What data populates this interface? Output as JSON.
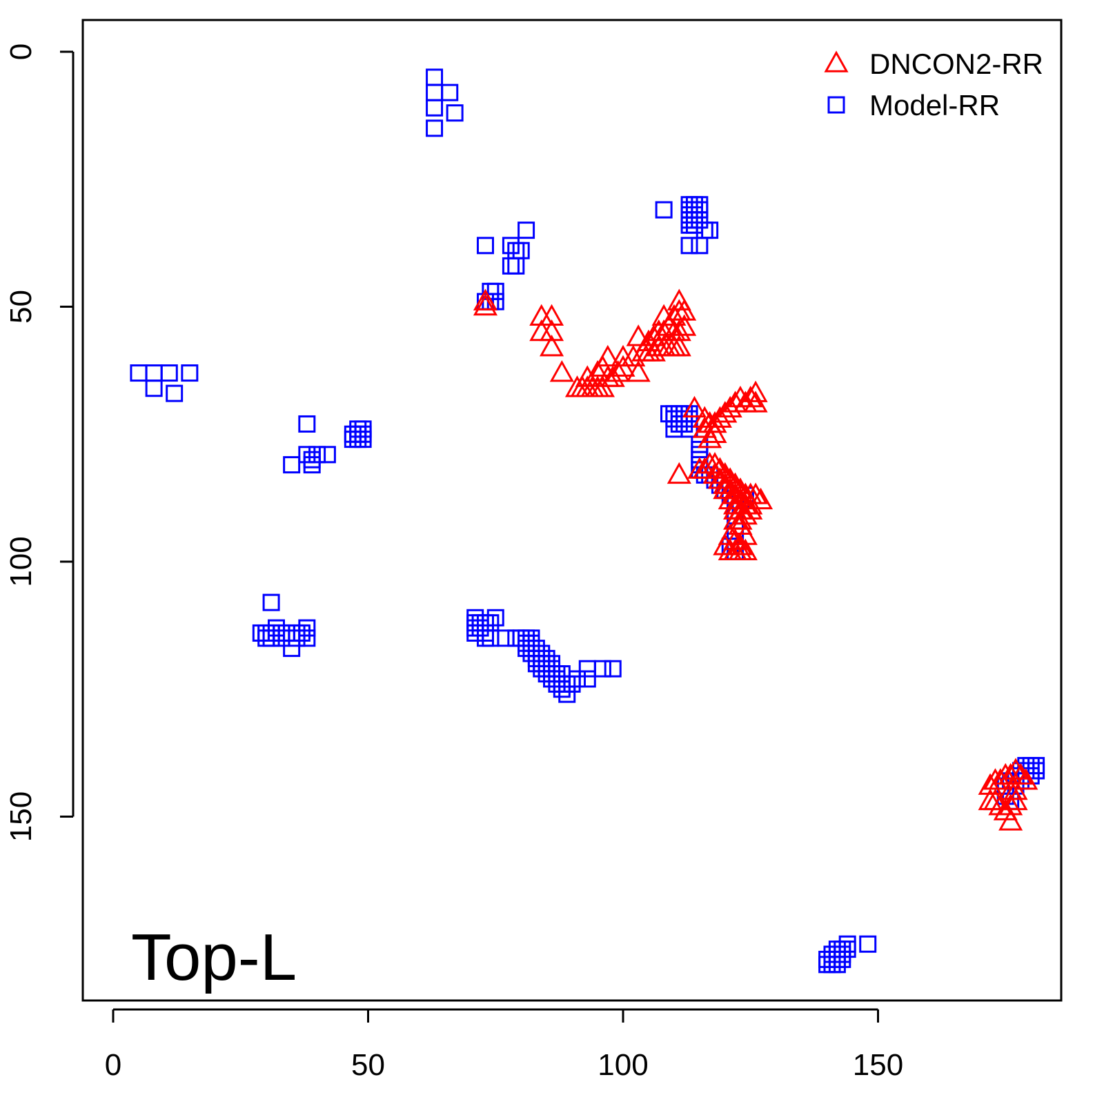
{
  "chart_data": {
    "type": "scatter",
    "title": "",
    "xlabel": "",
    "ylabel": "",
    "xlim": [
      -6,
      186
    ],
    "ylim": [
      186,
      -6
    ],
    "y_reversed": true,
    "x_ticks": [
      "0",
      "50",
      "100",
      "150"
    ],
    "x_tick_values": [
      0,
      50,
      100,
      150
    ],
    "y_ticks": [
      "0",
      "50",
      "100",
      "150"
    ],
    "y_tick_values": [
      0,
      50,
      100,
      150
    ],
    "annotation": "Top-L",
    "legend_position": "top-right",
    "grid": false,
    "series": [
      {
        "name": "DNCON2-RR",
        "marker": "triangle",
        "color": "#ff0000",
        "points": [
          [
            73,
            49
          ],
          [
            73,
            50
          ],
          [
            84,
            52
          ],
          [
            86,
            52
          ],
          [
            84,
            55
          ],
          [
            86,
            55
          ],
          [
            86,
            58
          ],
          [
            88,
            63
          ],
          [
            91,
            66
          ],
          [
            92,
            66
          ],
          [
            93,
            66
          ],
          [
            94,
            66
          ],
          [
            95,
            66
          ],
          [
            96,
            66
          ],
          [
            97,
            64
          ],
          [
            98,
            64
          ],
          [
            93,
            64
          ],
          [
            95,
            63
          ],
          [
            96,
            62
          ],
          [
            99,
            63
          ],
          [
            100,
            62
          ],
          [
            103,
            63
          ],
          [
            97,
            60
          ],
          [
            100,
            60
          ],
          [
            102,
            60
          ],
          [
            104,
            59
          ],
          [
            105,
            59
          ],
          [
            106,
            59
          ],
          [
            107,
            58
          ],
          [
            108,
            58
          ],
          [
            109,
            58
          ],
          [
            110,
            58
          ],
          [
            111,
            58
          ],
          [
            103,
            56
          ],
          [
            105,
            57
          ],
          [
            106,
            56
          ],
          [
            107,
            55
          ],
          [
            108,
            55
          ],
          [
            109,
            54
          ],
          [
            110,
            55
          ],
          [
            111,
            55
          ],
          [
            112,
            54
          ],
          [
            108,
            52
          ],
          [
            110,
            52
          ],
          [
            111,
            51
          ],
          [
            112,
            51
          ],
          [
            111,
            49
          ],
          [
            114,
            70
          ],
          [
            116,
            72
          ],
          [
            117,
            73
          ],
          [
            118,
            73
          ],
          [
            119,
            72
          ],
          [
            120,
            71
          ],
          [
            121,
            70
          ],
          [
            122,
            69
          ],
          [
            123,
            68
          ],
          [
            124,
            69
          ],
          [
            125,
            68
          ],
          [
            126,
            67
          ],
          [
            126,
            69
          ],
          [
            116,
            74
          ],
          [
            117,
            76
          ],
          [
            118,
            75
          ],
          [
            111,
            83
          ],
          [
            115,
            82
          ],
          [
            116,
            82
          ],
          [
            117,
            81
          ],
          [
            118,
            81
          ],
          [
            119,
            82
          ],
          [
            120,
            83
          ],
          [
            121,
            84
          ],
          [
            122,
            85
          ],
          [
            123,
            86
          ],
          [
            124,
            87
          ],
          [
            125,
            87
          ],
          [
            126,
            87
          ],
          [
            127,
            88
          ],
          [
            118,
            83
          ],
          [
            119,
            84
          ],
          [
            120,
            85
          ],
          [
            121,
            86
          ],
          [
            122,
            87
          ],
          [
            123,
            88
          ],
          [
            124,
            89
          ],
          [
            125,
            89
          ],
          [
            120,
            86
          ],
          [
            121,
            88
          ],
          [
            122,
            89
          ],
          [
            123,
            90
          ],
          [
            122,
            92
          ],
          [
            123,
            93
          ],
          [
            121,
            95
          ],
          [
            122,
            96
          ],
          [
            123,
            97
          ],
          [
            121,
            98
          ],
          [
            122,
            98
          ],
          [
            123,
            98
          ],
          [
            124,
            98
          ],
          [
            120,
            97
          ],
          [
            124,
            95
          ],
          [
            123,
            92
          ],
          [
            122,
            90
          ],
          [
            124,
            91
          ],
          [
            125,
            90
          ],
          [
            172,
            144
          ],
          [
            173,
            143
          ],
          [
            174,
            143
          ],
          [
            175,
            142
          ],
          [
            176,
            142
          ],
          [
            177,
            141
          ],
          [
            178,
            142
          ],
          [
            179,
            143
          ],
          [
            172,
            147
          ],
          [
            173,
            147
          ],
          [
            174,
            148
          ],
          [
            175,
            149
          ],
          [
            176,
            148
          ],
          [
            177,
            147
          ],
          [
            176,
            151
          ],
          [
            176,
            145
          ],
          [
            177,
            145
          ]
        ]
      },
      {
        "name": "Model-RR",
        "marker": "square",
        "color": "#0000ff",
        "points": [
          [
            63,
            5
          ],
          [
            63,
            8
          ],
          [
            63,
            11
          ],
          [
            63,
            15
          ],
          [
            66,
            8
          ],
          [
            67,
            12
          ],
          [
            5,
            63
          ],
          [
            8,
            63
          ],
          [
            11,
            63
          ],
          [
            15,
            63
          ],
          [
            8,
            66
          ],
          [
            12,
            67
          ],
          [
            73,
            38
          ],
          [
            78,
            38
          ],
          [
            79,
            39
          ],
          [
            80,
            39
          ],
          [
            81,
            35
          ],
          [
            78,
            42
          ],
          [
            79,
            42
          ],
          [
            73,
            49
          ],
          [
            74,
            49
          ],
          [
            75,
            49
          ],
          [
            74,
            47
          ],
          [
            75,
            47
          ],
          [
            108,
            31
          ],
          [
            113,
            30
          ],
          [
            113,
            31
          ],
          [
            113,
            32
          ],
          [
            113,
            33
          ],
          [
            113,
            34
          ],
          [
            114,
            30
          ],
          [
            114,
            31
          ],
          [
            114,
            32
          ],
          [
            114,
            33
          ],
          [
            114,
            34
          ],
          [
            115,
            30
          ],
          [
            115,
            31
          ],
          [
            115,
            33
          ],
          [
            116,
            35
          ],
          [
            113,
            38
          ],
          [
            115,
            38
          ],
          [
            117,
            35
          ],
          [
            109,
            71
          ],
          [
            110,
            71
          ],
          [
            110,
            72
          ],
          [
            111,
            71
          ],
          [
            112,
            71
          ],
          [
            113,
            71
          ],
          [
            113,
            72
          ],
          [
            110,
            74
          ],
          [
            111,
            73
          ],
          [
            112,
            73
          ],
          [
            113,
            74
          ],
          [
            115,
            77
          ],
          [
            115,
            78
          ],
          [
            115,
            79
          ],
          [
            115,
            80
          ],
          [
            115,
            81
          ],
          [
            115,
            82
          ],
          [
            116,
            83
          ],
          [
            117,
            83
          ],
          [
            118,
            84
          ],
          [
            119,
            85
          ],
          [
            120,
            86
          ],
          [
            121,
            87
          ],
          [
            122,
            88
          ],
          [
            123,
            89
          ],
          [
            124,
            87
          ],
          [
            122,
            90
          ],
          [
            122,
            92
          ],
          [
            122,
            94
          ],
          [
            122,
            96
          ],
          [
            121,
            97
          ],
          [
            122,
            98
          ],
          [
            38,
            73
          ],
          [
            38,
            79
          ],
          [
            39,
            80
          ],
          [
            40,
            79
          ],
          [
            35,
            81
          ],
          [
            39,
            81
          ],
          [
            42,
            79
          ],
          [
            47,
            75
          ],
          [
            48,
            74
          ],
          [
            48,
            75
          ],
          [
            48,
            76
          ],
          [
            49,
            74
          ],
          [
            49,
            75
          ],
          [
            49,
            76
          ],
          [
            47,
            76
          ],
          [
            31,
            108
          ],
          [
            29,
            114
          ],
          [
            30,
            114
          ],
          [
            31,
            114
          ],
          [
            31,
            115
          ],
          [
            32,
            114
          ],
          [
            33,
            114
          ],
          [
            33,
            115
          ],
          [
            34,
            114
          ],
          [
            35,
            114
          ],
          [
            36,
            114
          ],
          [
            37,
            114
          ],
          [
            35,
            117
          ],
          [
            38,
            113
          ],
          [
            38,
            115
          ],
          [
            36,
            115
          ],
          [
            30,
            115
          ],
          [
            32,
            113
          ],
          [
            71,
            111
          ],
          [
            71,
            112
          ],
          [
            71,
            113
          ],
          [
            71,
            114
          ],
          [
            72,
            112
          ],
          [
            72,
            113
          ],
          [
            73,
            112
          ],
          [
            73,
            114
          ],
          [
            73,
            115
          ],
          [
            74,
            112
          ],
          [
            74,
            115
          ],
          [
            75,
            111
          ],
          [
            77,
            115
          ],
          [
            79,
            115
          ],
          [
            80,
            115
          ],
          [
            81,
            115
          ],
          [
            81,
            116
          ],
          [
            81,
            117
          ],
          [
            82,
            115
          ],
          [
            82,
            116
          ],
          [
            82,
            117
          ],
          [
            82,
            118
          ],
          [
            83,
            117
          ],
          [
            83,
            118
          ],
          [
            83,
            119
          ],
          [
            83,
            120
          ],
          [
            84,
            118
          ],
          [
            84,
            119
          ],
          [
            84,
            120
          ],
          [
            84,
            121
          ],
          [
            85,
            119
          ],
          [
            85,
            120
          ],
          [
            85,
            121
          ],
          [
            85,
            122
          ],
          [
            86,
            120
          ],
          [
            86,
            121
          ],
          [
            86,
            122
          ],
          [
            86,
            123
          ],
          [
            87,
            122
          ],
          [
            87,
            123
          ],
          [
            87,
            124
          ],
          [
            88,
            122
          ],
          [
            88,
            124
          ],
          [
            88,
            125
          ],
          [
            89,
            124
          ],
          [
            89,
            126
          ],
          [
            90,
            124
          ],
          [
            91,
            123
          ],
          [
            93,
            123
          ],
          [
            93,
            121
          ],
          [
            96,
            121
          ],
          [
            98,
            121
          ],
          [
            141,
            177
          ],
          [
            141,
            178
          ],
          [
            141,
            179
          ],
          [
            142,
            176
          ],
          [
            142,
            177
          ],
          [
            142,
            178
          ],
          [
            142,
            179
          ],
          [
            143,
            176
          ],
          [
            143,
            177
          ],
          [
            143,
            178
          ],
          [
            144,
            175
          ],
          [
            144,
            176
          ],
          [
            148,
            175
          ],
          [
            140,
            178
          ],
          [
            140,
            179
          ],
          [
            175,
            144
          ],
          [
            176,
            143
          ],
          [
            177,
            142
          ],
          [
            178,
            141
          ],
          [
            179,
            140
          ],
          [
            180,
            140
          ],
          [
            181,
            140
          ],
          [
            177,
            144
          ],
          [
            178,
            143
          ],
          [
            179,
            141
          ],
          [
            180,
            142
          ],
          [
            181,
            141
          ],
          [
            175,
            146
          ],
          [
            176,
            147
          ]
        ]
      }
    ]
  }
}
